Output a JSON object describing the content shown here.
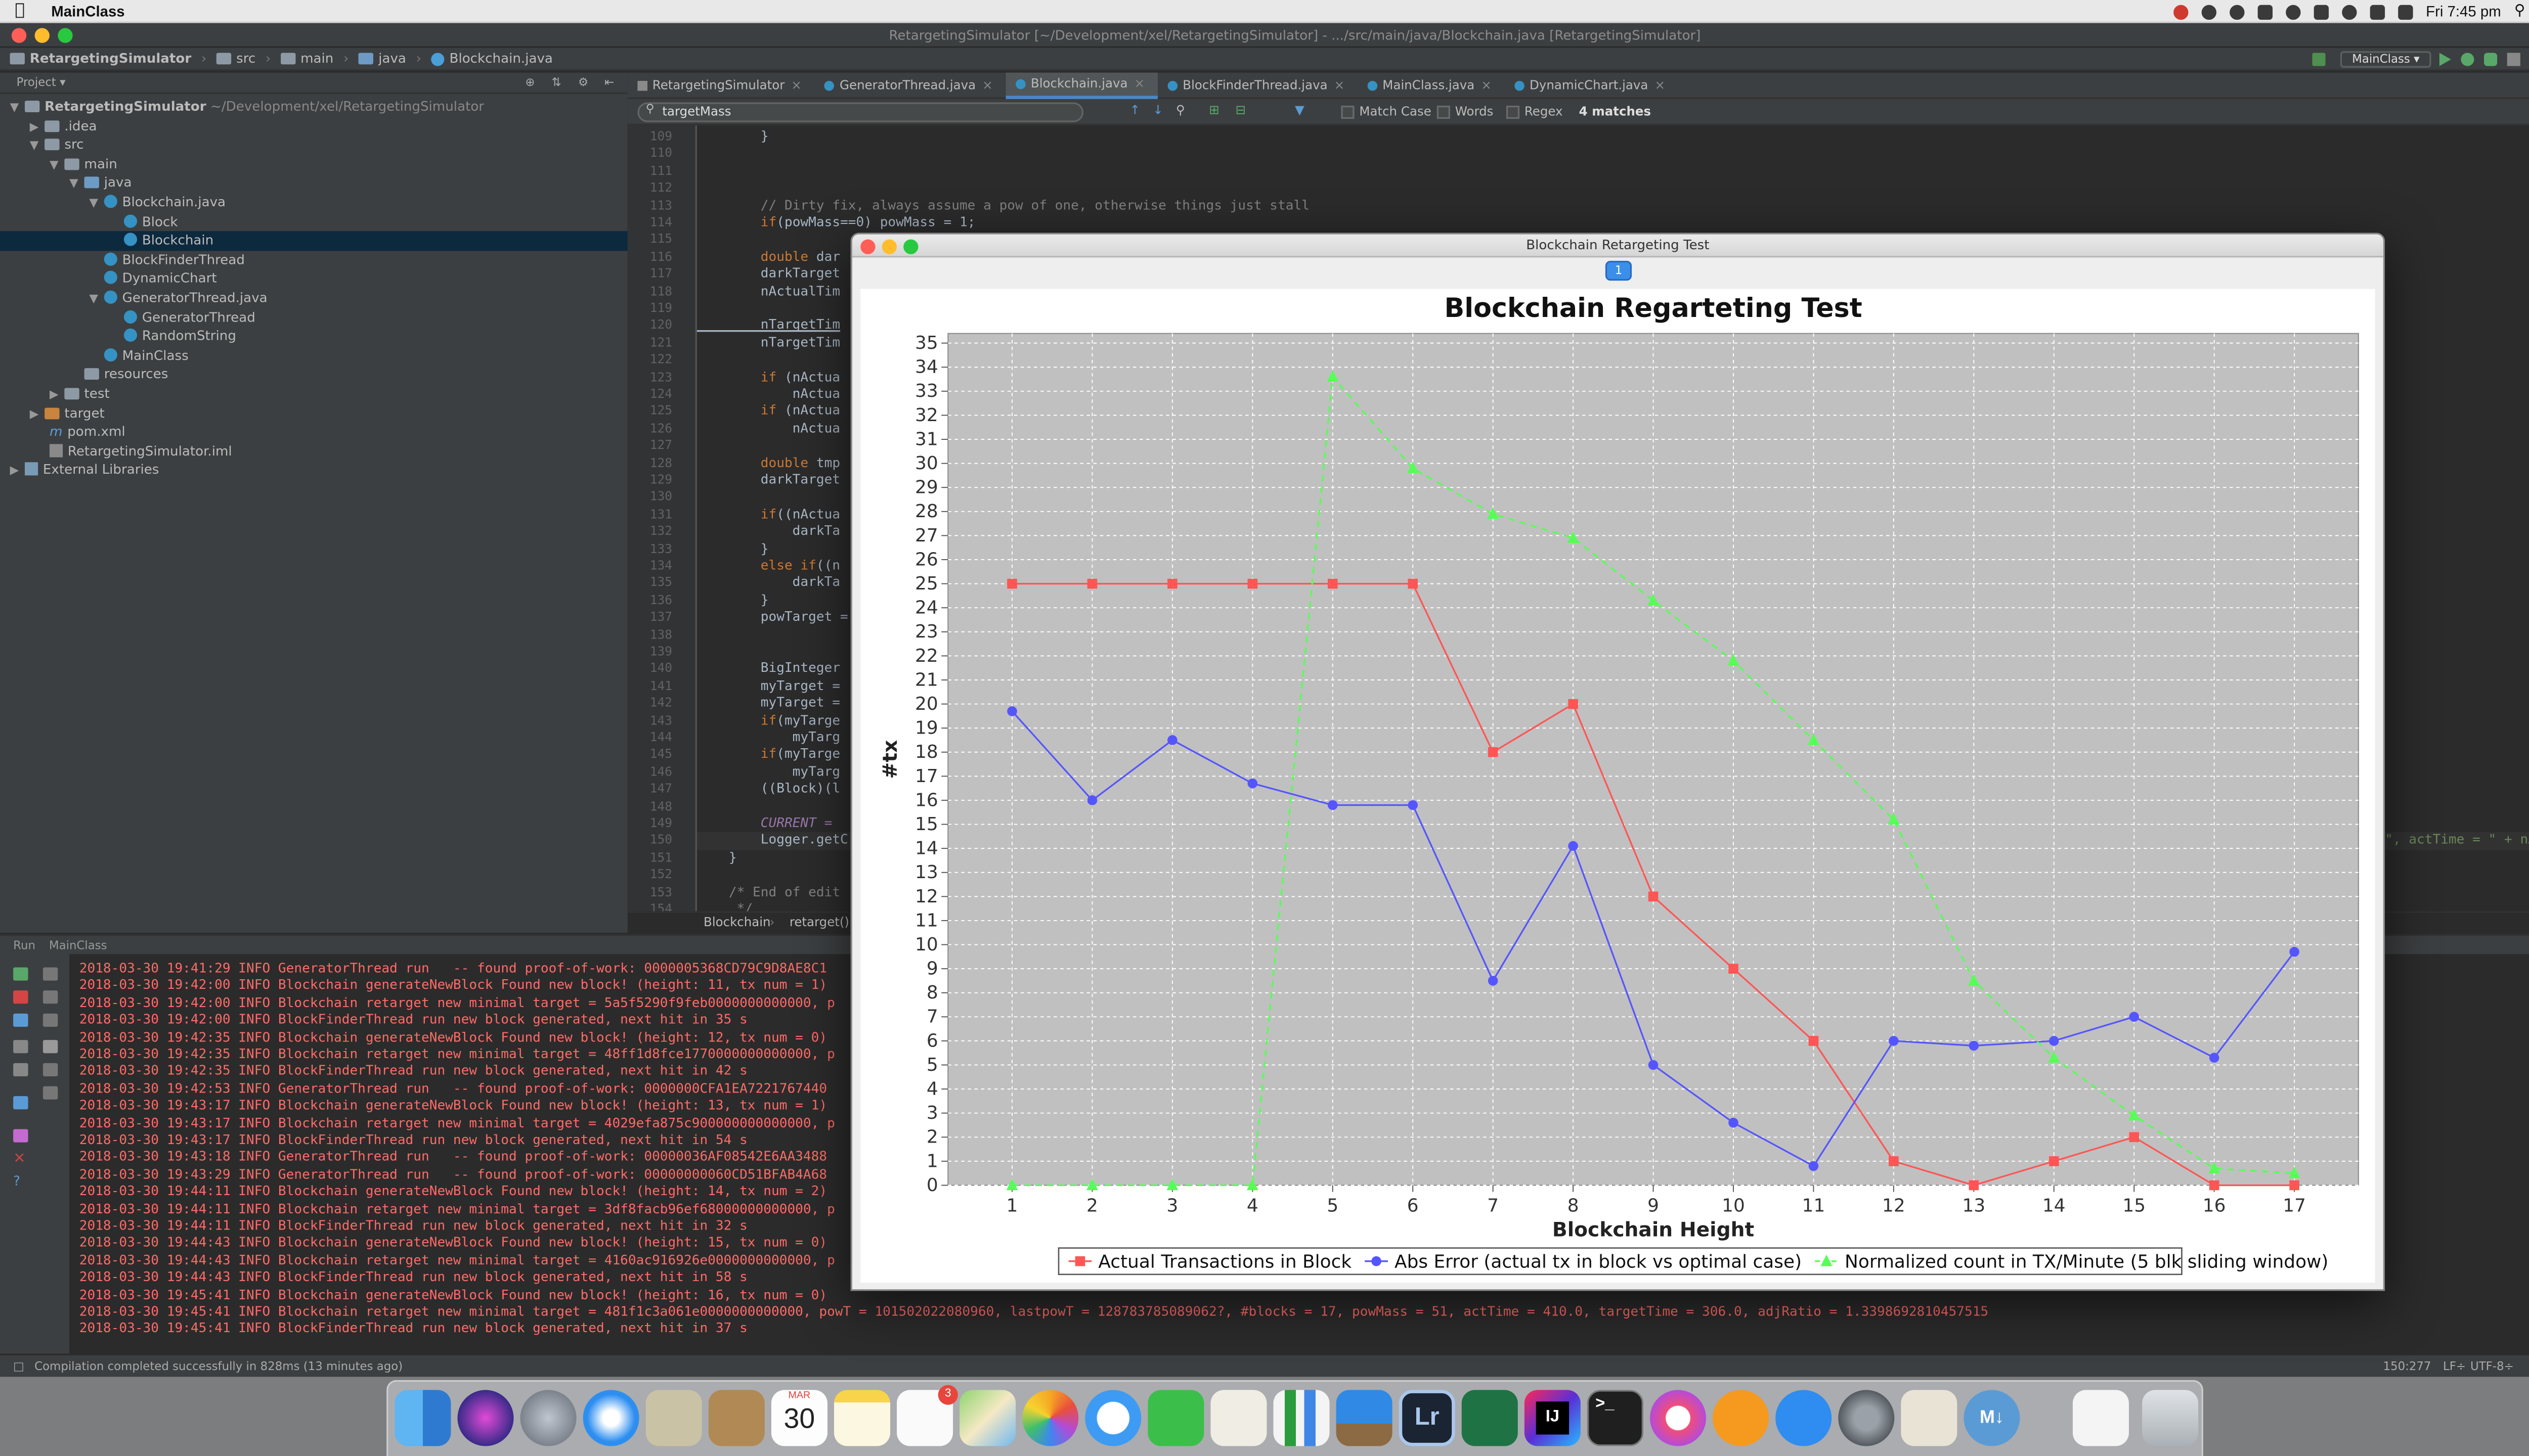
{
  "menubar": {
    "app": "MainClass",
    "clock": "Fri 7:45 pm"
  },
  "window": {
    "title": "RetargetingSimulator [~/Development/xel/RetargetingSimulator] - .../src/main/java/Blockchain.java [RetargetingSimulator]"
  },
  "breadcrumb": [
    "RetargetingSimulator",
    "src",
    "main",
    "java",
    "Blockchain.java"
  ],
  "run_config": "MainClass",
  "project": {
    "header": "Project",
    "root_name": "RetargetingSimulator",
    "root_path": "~/Development/xel/RetargetingSimulator",
    "items": [
      ".idea",
      "src",
      "main",
      "java",
      "Blockchain.java",
      "Block",
      "Blockchain",
      "BlockFinderThread",
      "DynamicChart",
      "GeneratorThread.java",
      "GeneratorThread",
      "RandomString",
      "MainClass",
      "resources",
      "test",
      "target",
      "pom.xml",
      "RetargetingSimulator.iml",
      "External Libraries"
    ]
  },
  "editor": {
    "tabs": [
      "RetargetingSimulator",
      "GeneratorThread.java",
      "Blockchain.java",
      "BlockFinderThread.java",
      "MainClass.java",
      "DynamicChart.java"
    ],
    "find": {
      "query": "targetMass",
      "match_case": "Match Case",
      "words": "Words",
      "regex": "Regex",
      "matches": "4 matches"
    },
    "line_numbers": [
      "109",
      "110",
      "111",
      "112",
      "113",
      "114",
      "115",
      "116",
      "117",
      "118",
      "119",
      "120",
      "121",
      "122",
      "123",
      "124",
      "125",
      "126",
      "127",
      "128",
      "129",
      "130",
      "131",
      "132",
      "133",
      "134",
      "135",
      "136",
      "137",
      "138",
      "139",
      "140",
      "141",
      "142",
      "143",
      "144",
      "145",
      "146",
      "147",
      "148",
      "149",
      "150",
      "151",
      "152",
      "153",
      "154"
    ],
    "code": {
      "l109": "        }",
      "l113": "        // Dirty fix, always assume a pow of one, otherwise things just stall",
      "l114_kw": "        if",
      "l114_rest": "(powMass==0) powMass = 1;",
      "l116_kw": "        double",
      "l116_rest": " dar",
      "l117": "        darkTarget",
      "l118": "        nActualTim",
      "l120": "        nTargetTim",
      "l121": "        nTargetTim",
      "l123_kw": "        if",
      "l123_rest": " (nActua",
      "l124": "            nActua",
      "l125_kw": "        if",
      "l125_rest": " (nActua",
      "l126": "            nActua",
      "l128_kw": "        double",
      "l128_rest": " tmp",
      "l129": "        darkTarget",
      "l131_kw": "        if",
      "l131_rest": "((nActua",
      "l132": "            darkTa",
      "l133": "        }",
      "l134_kw": "        else if",
      "l134_rest": "((n",
      "l135": "            darkTa",
      "l136": "        }",
      "l137": "        powTarget =",
      "l140": "        BigInteger",
      "l141": "        myTarget =",
      "l142": "        myTarget =",
      "l143_kw": "        if",
      "l143_rest": "(myTarge",
      "l144": "            myTarg",
      "l145_kw": "        if",
      "l145_rest": "(myTarge",
      "l146": "            myTarg",
      "l147": "        ((Block)(l",
      "l149": "        CURRENT = ",
      "l150": "        Logger.getC",
      "l150_right": "\", actTime = \" + nActual",
      "l151": "    }",
      "l153": "    /* End of edit",
      "l154": "     */"
    },
    "code_breadcrumb": [
      "Blockchain",
      "retarget()"
    ]
  },
  "run": {
    "header": "Run",
    "config": "MainClass",
    "lines": [
      "2018-03-30 19:41:29 INFO GeneratorThread run   -- found proof-of-work: 0000005368CD79C9D8AE8C1",
      "2018-03-30 19:42:00 INFO Blockchain generateNewBlock Found new block! (height: 11, tx num = 1)",
      "2018-03-30 19:42:00 INFO Blockchain retarget new minimal target = 5a5f5290f9feb0000000000000, p",
      "2018-03-30 19:42:00 INFO BlockFinderThread run new block generated, next hit in 35 s",
      "2018-03-30 19:42:35 INFO Blockchain generateNewBlock Found new block! (height: 12, tx num = 0)",
      "2018-03-30 19:42:35 INFO Blockchain retarget new minimal target = 48ff1d8fce1770000000000000, p",
      "2018-03-30 19:42:35 INFO BlockFinderThread run new block generated, next hit in 42 s",
      "2018-03-30 19:42:53 INFO GeneratorThread run   -- found proof-of-work: 0000000CFA1EA7221767440",
      "2018-03-30 19:43:17 INFO Blockchain generateNewBlock Found new block! (height: 13, tx num = 1)",
      "2018-03-30 19:43:17 INFO Blockchain retarget new minimal target = 4029efa875c900000000000000, p",
      "2018-03-30 19:43:17 INFO BlockFinderThread run new block generated, next hit in 54 s",
      "2018-03-30 19:43:18 INFO GeneratorThread run   -- found proof-of-work: 00000036AF08542E6AA3488",
      "2018-03-30 19:43:29 INFO GeneratorThread run   -- found proof-of-work: 00000000060CD51BFAB4A68",
      "2018-03-30 19:44:11 INFO Blockchain generateNewBlock Found new block! (height: 14, tx num = 2)",
      "2018-03-30 19:44:11 INFO Blockchain retarget new minimal target = 3df8facb96ef68000000000000, p",
      "2018-03-30 19:44:11 INFO BlockFinderThread run new block generated, next hit in 32 s",
      "2018-03-30 19:44:43 INFO Blockchain generateNewBlock Found new block! (height: 15, tx num = 0)",
      "2018-03-30 19:44:43 INFO Blockchain retarget new minimal target = 4160ac916926e0000000000000, p",
      "2018-03-30 19:44:43 INFO BlockFinderThread run new block generated, next hit in 58 s",
      "2018-03-30 19:45:41 INFO Blockchain generateNewBlock Found new block! (height: 16, tx num = 0)",
      "2018-03-30 19:45:41 INFO Blockchain retarget new minimal target = 481f1c3a061e0000000000000, powT = 101502022080960, lastpowT = 128783785089062?, #blocks = 17, powMass = 51, actTime = 410.0, targetTime = 306.0, adjRatio = 1.3398692810457515",
      "2018-03-30 19:45:41 INFO BlockFinderThread run new block generated, next hit in 37 s"
    ]
  },
  "status": {
    "left": "Compilation completed successfully in 828ms (13 minutes ago)",
    "position": "150:277",
    "line_sep": "LF÷",
    "encoding": "UTF-8÷"
  },
  "dock": {
    "calendar_month": "MAR",
    "calendar_day": "30",
    "badge": "3",
    "lr": "Lr",
    "ij": "IJ",
    "md": "M↓"
  },
  "chart_window": {
    "title": "Blockchain Retargeting Test",
    "button": "1"
  },
  "chart_data": {
    "type": "line",
    "title": "Blockchain Regarteting Test",
    "xlabel": "Blockchain Height",
    "ylabel": "#tx",
    "xlim": [
      0.2,
      17.8
    ],
    "ylim": [
      0,
      35.4
    ],
    "x_ticks": [
      1,
      2,
      3,
      4,
      5,
      6,
      7,
      8,
      9,
      10,
      11,
      12,
      13,
      14,
      15,
      16,
      17
    ],
    "y_ticks": [
      0,
      1,
      2,
      3,
      4,
      5,
      6,
      7,
      8,
      9,
      10,
      11,
      12,
      13,
      14,
      15,
      16,
      17,
      18,
      19,
      20,
      21,
      22,
      23,
      24,
      25,
      26,
      27,
      28,
      29,
      30,
      31,
      32,
      33,
      34,
      35
    ],
    "grid": true,
    "legend": "bottom",
    "colors": {
      "plot_bg": "#c0c0c0",
      "grid": "#ffffff"
    },
    "series": [
      {
        "name": "Actual Transactions in Block",
        "color": "#ff5555",
        "marker": "square",
        "dashed": false,
        "x": [
          1,
          2,
          3,
          4,
          5,
          6,
          7,
          8,
          9,
          10,
          11,
          12,
          13,
          14,
          15,
          16,
          17
        ],
        "y": [
          25,
          25,
          25,
          25,
          25,
          25,
          18,
          20,
          12,
          9,
          6,
          1,
          0,
          1,
          2,
          0,
          0
        ]
      },
      {
        "name": "Abs Error (actual tx in block vs optimal case)",
        "color": "#5555ff",
        "marker": "circle",
        "dashed": false,
        "x": [
          1,
          2,
          3,
          4,
          5,
          6,
          7,
          8,
          9,
          10,
          11,
          12,
          13,
          14,
          15,
          16,
          17
        ],
        "y": [
          19.7,
          16,
          18.5,
          16.7,
          15.8,
          15.8,
          8.5,
          14.1,
          5,
          2.6,
          0.8,
          6,
          5.8,
          6,
          7,
          5.3,
          9.7
        ]
      },
      {
        "name": "Normalized count in TX/Minute (5 blk sliding window)",
        "color": "#55ff55",
        "marker": "triangle",
        "dashed": true,
        "x": [
          1,
          2,
          3,
          4,
          5,
          6,
          7,
          8,
          9,
          10,
          11,
          12,
          13,
          14,
          15,
          16,
          17
        ],
        "y": [
          0,
          0,
          0,
          0,
          33.6,
          29.8,
          27.9,
          26.9,
          24.3,
          21.8,
          18.5,
          15.2,
          8.5,
          5.3,
          2.9,
          0.7,
          0.5
        ]
      }
    ]
  }
}
